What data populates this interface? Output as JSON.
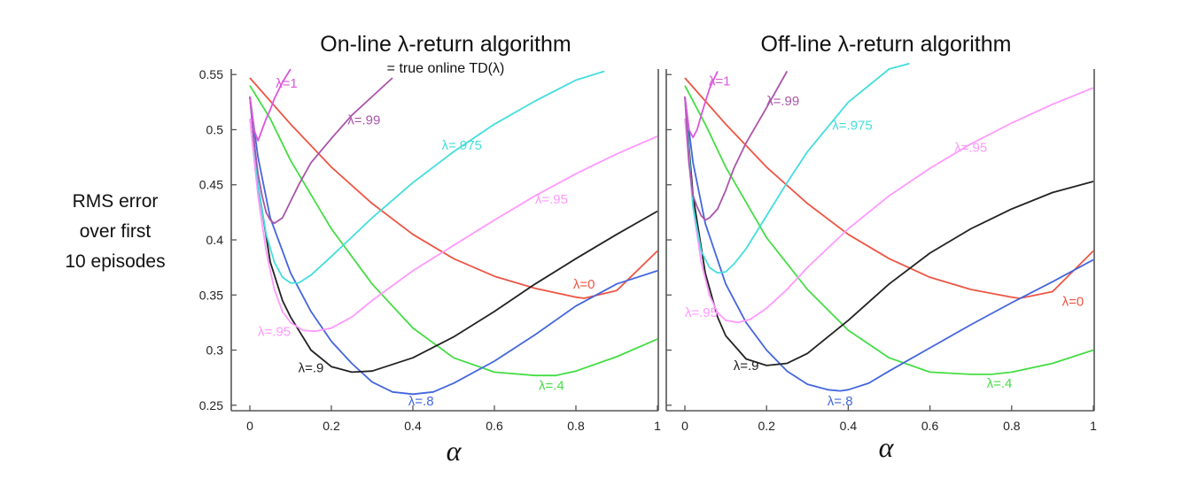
{
  "ylabel_lines": [
    "RMS error",
    "over first",
    "10 episodes"
  ],
  "chart_data": [
    {
      "type": "line",
      "title": "On-line λ-return algorithm",
      "subtitle": "= true online TD(λ)",
      "xlabel": "α",
      "xlim": [
        0,
        1
      ],
      "ylim": [
        0.245,
        0.555
      ],
      "xticks": [
        "0",
        "0.2",
        "0.4",
        "0.6",
        "0.8",
        "1"
      ],
      "yticks": [
        "0.25",
        "0.3",
        "0.35",
        "0.4",
        "0.45",
        "0.5",
        "0.55"
      ],
      "series": [
        {
          "name": "λ=0",
          "color": "#ee5544",
          "x": [
            0,
            0.1,
            0.2,
            0.3,
            0.4,
            0.5,
            0.6,
            0.7,
            0.8,
            0.82,
            0.9,
            1.0
          ],
          "y": [
            0.547,
            0.505,
            0.466,
            0.433,
            0.405,
            0.383,
            0.367,
            0.356,
            0.348,
            0.347,
            0.354,
            0.39
          ]
        },
        {
          "name": "λ=.4",
          "color": "#44dd44",
          "x": [
            0,
            0.05,
            0.1,
            0.2,
            0.3,
            0.4,
            0.5,
            0.6,
            0.7,
            0.75,
            0.8,
            0.9,
            1.0
          ],
          "y": [
            0.54,
            0.51,
            0.472,
            0.41,
            0.36,
            0.32,
            0.293,
            0.28,
            0.277,
            0.277,
            0.281,
            0.294,
            0.31
          ]
        },
        {
          "name": "λ=.8",
          "color": "#4466dd",
          "x": [
            0,
            0.02,
            0.05,
            0.1,
            0.15,
            0.2,
            0.25,
            0.3,
            0.35,
            0.4,
            0.45,
            0.5,
            0.6,
            0.7,
            0.8,
            0.9,
            1.0
          ],
          "y": [
            0.53,
            0.475,
            0.42,
            0.37,
            0.335,
            0.308,
            0.288,
            0.271,
            0.262,
            0.26,
            0.262,
            0.27,
            0.29,
            0.314,
            0.34,
            0.36,
            0.372
          ]
        },
        {
          "name": "λ=.9",
          "color": "#222222",
          "x": [
            0,
            0.02,
            0.05,
            0.08,
            0.1,
            0.15,
            0.2,
            0.25,
            0.3,
            0.4,
            0.5,
            0.6,
            0.7,
            0.8,
            0.9,
            1.0
          ],
          "y": [
            0.53,
            0.45,
            0.38,
            0.345,
            0.33,
            0.3,
            0.285,
            0.28,
            0.281,
            0.293,
            0.312,
            0.335,
            0.36,
            0.383,
            0.405,
            0.426
          ]
        },
        {
          "name": "λ=.95",
          "color": "#ff99ff",
          "x": [
            0,
            0.02,
            0.04,
            0.06,
            0.08,
            0.1,
            0.13,
            0.16,
            0.2,
            0.25,
            0.3,
            0.4,
            0.5,
            0.6,
            0.7,
            0.8,
            0.9,
            1.0
          ],
          "y": [
            0.51,
            0.44,
            0.39,
            0.355,
            0.335,
            0.325,
            0.318,
            0.317,
            0.32,
            0.33,
            0.345,
            0.372,
            0.395,
            0.418,
            0.44,
            0.46,
            0.478,
            0.494
          ]
        },
        {
          "name": "λ=.975",
          "color": "#44dddd",
          "x": [
            0,
            0.02,
            0.04,
            0.06,
            0.08,
            0.1,
            0.12,
            0.15,
            0.2,
            0.3,
            0.4,
            0.5,
            0.6,
            0.7,
            0.8,
            0.87
          ],
          "y": [
            0.53,
            0.45,
            0.405,
            0.38,
            0.366,
            0.361,
            0.361,
            0.368,
            0.385,
            0.42,
            0.452,
            0.48,
            0.505,
            0.526,
            0.545,
            0.553
          ]
        },
        {
          "name": "λ=.99",
          "color": "#aa55aa",
          "x": [
            0,
            0.01,
            0.02,
            0.03,
            0.04,
            0.05,
            0.06,
            0.08,
            0.1,
            0.12,
            0.15,
            0.2,
            0.25,
            0.3,
            0.35
          ],
          "y": [
            0.53,
            0.49,
            0.46,
            0.44,
            0.425,
            0.418,
            0.415,
            0.42,
            0.435,
            0.45,
            0.47,
            0.492,
            0.513,
            0.53,
            0.547
          ]
        },
        {
          "name": "λ=1",
          "color": "#dd55dd",
          "x": [
            0,
            0.01,
            0.02,
            0.03,
            0.04,
            0.05,
            0.06,
            0.08,
            0.1
          ],
          "y": [
            0.53,
            0.5,
            0.49,
            0.5,
            0.51,
            0.518,
            0.528,
            0.543,
            0.555
          ]
        }
      ],
      "labels": [
        {
          "text": "λ=1",
          "color": "#dd55dd",
          "x": 0.09,
          "y": 0.538
        },
        {
          "text": "λ=.99",
          "color": "#aa55aa",
          "x": 0.28,
          "y": 0.505
        },
        {
          "text": "λ=.975",
          "color": "#44dddd",
          "x": 0.52,
          "y": 0.482
        },
        {
          "text": "λ=.95",
          "color": "#ff99ff",
          "x": 0.74,
          "y": 0.433
        },
        {
          "text": "λ=0",
          "color": "#ee5544",
          "x": 0.82,
          "y": 0.356
        },
        {
          "text": "λ=.95",
          "color": "#ff99ff",
          "x": 0.06,
          "y": 0.313
        },
        {
          "text": "λ=.9",
          "color": "#222222",
          "x": 0.15,
          "y": 0.28
        },
        {
          "text": "λ=.8",
          "color": "#4466dd",
          "x": 0.42,
          "y": 0.25
        },
        {
          "text": "λ=.4",
          "color": "#44dd44",
          "x": 0.74,
          "y": 0.264
        }
      ]
    },
    {
      "type": "line",
      "title": "Off-line λ-return algorithm",
      "subtitle": "",
      "xlabel": "α",
      "xlim": [
        0,
        1
      ],
      "ylim": [
        0.245,
        0.555
      ],
      "xticks": [
        "0",
        "0.2",
        "0.4",
        "0.6",
        "0.8",
        "1"
      ],
      "yticks": [],
      "series": [
        {
          "name": "λ=0",
          "color": "#ee5544",
          "x": [
            0,
            0.1,
            0.2,
            0.3,
            0.4,
            0.5,
            0.6,
            0.7,
            0.8,
            0.82,
            0.9,
            1.0
          ],
          "y": [
            0.547,
            0.505,
            0.466,
            0.433,
            0.405,
            0.383,
            0.366,
            0.355,
            0.348,
            0.347,
            0.353,
            0.39
          ]
        },
        {
          "name": "λ=.4",
          "color": "#44dd44",
          "x": [
            0,
            0.05,
            0.1,
            0.2,
            0.3,
            0.4,
            0.5,
            0.6,
            0.7,
            0.75,
            0.8,
            0.9,
            1.0
          ],
          "y": [
            0.54,
            0.505,
            0.466,
            0.402,
            0.355,
            0.318,
            0.293,
            0.28,
            0.278,
            0.278,
            0.28,
            0.288,
            0.3
          ]
        },
        {
          "name": "λ=.8",
          "color": "#4466dd",
          "x": [
            0,
            0.02,
            0.05,
            0.1,
            0.15,
            0.2,
            0.25,
            0.3,
            0.35,
            0.38,
            0.4,
            0.45,
            0.5,
            0.6,
            0.7,
            0.8,
            0.9,
            1.0
          ],
          "y": [
            0.53,
            0.47,
            0.415,
            0.36,
            0.325,
            0.3,
            0.281,
            0.269,
            0.264,
            0.263,
            0.264,
            0.27,
            0.281,
            0.302,
            0.323,
            0.343,
            0.362,
            0.382
          ]
        },
        {
          "name": "λ=.9",
          "color": "#222222",
          "x": [
            0,
            0.02,
            0.05,
            0.08,
            0.1,
            0.15,
            0.2,
            0.25,
            0.3,
            0.4,
            0.5,
            0.6,
            0.7,
            0.8,
            0.9,
            1.0
          ],
          "y": [
            0.53,
            0.44,
            0.37,
            0.33,
            0.313,
            0.292,
            0.286,
            0.288,
            0.297,
            0.327,
            0.36,
            0.388,
            0.41,
            0.428,
            0.443,
            0.453
          ]
        },
        {
          "name": "λ=.95",
          "color": "#ff99ff",
          "x": [
            0,
            0.02,
            0.04,
            0.06,
            0.08,
            0.1,
            0.13,
            0.16,
            0.2,
            0.25,
            0.3,
            0.4,
            0.5,
            0.6,
            0.7,
            0.8,
            0.9,
            1.0
          ],
          "y": [
            0.51,
            0.43,
            0.38,
            0.35,
            0.334,
            0.327,
            0.325,
            0.328,
            0.338,
            0.355,
            0.375,
            0.41,
            0.44,
            0.465,
            0.487,
            0.506,
            0.523,
            0.538
          ]
        },
        {
          "name": "λ=.975",
          "color": "#44dddd",
          "x": [
            0,
            0.02,
            0.04,
            0.06,
            0.08,
            0.1,
            0.12,
            0.15,
            0.2,
            0.25,
            0.3,
            0.4,
            0.5,
            0.55
          ],
          "y": [
            0.53,
            0.43,
            0.39,
            0.375,
            0.37,
            0.371,
            0.378,
            0.392,
            0.422,
            0.452,
            0.48,
            0.525,
            0.555,
            0.56
          ]
        },
        {
          "name": "λ=.99",
          "color": "#aa55aa",
          "x": [
            0,
            0.01,
            0.02,
            0.03,
            0.04,
            0.05,
            0.06,
            0.08,
            0.1,
            0.12,
            0.15,
            0.2,
            0.25
          ],
          "y": [
            0.53,
            0.47,
            0.44,
            0.43,
            0.422,
            0.418,
            0.42,
            0.428,
            0.445,
            0.465,
            0.488,
            0.52,
            0.553
          ]
        },
        {
          "name": "λ=1",
          "color": "#dd55dd",
          "x": [
            0,
            0.01,
            0.02,
            0.03,
            0.04,
            0.05,
            0.06,
            0.08
          ],
          "y": [
            0.53,
            0.5,
            0.493,
            0.5,
            0.513,
            0.525,
            0.537,
            0.553
          ]
        }
      ],
      "labels": [
        {
          "text": "λ=1",
          "color": "#dd55dd",
          "x": 0.085,
          "y": 0.54
        },
        {
          "text": "λ=.99",
          "color": "#aa55aa",
          "x": 0.24,
          "y": 0.522
        },
        {
          "text": "λ=.975",
          "color": "#44dddd",
          "x": 0.41,
          "y": 0.5
        },
        {
          "text": "λ=.95",
          "color": "#ff99ff",
          "x": 0.7,
          "y": 0.48
        },
        {
          "text": "λ=0",
          "color": "#ee5544",
          "x": 0.95,
          "y": 0.34
        },
        {
          "text": "λ=.95",
          "color": "#ff99ff",
          "x": 0.04,
          "y": 0.33
        },
        {
          "text": "λ=.9",
          "color": "#222222",
          "x": 0.15,
          "y": 0.282
        },
        {
          "text": "λ=.8",
          "color": "#4466dd",
          "x": 0.38,
          "y": 0.25
        },
        {
          "text": "λ=.4",
          "color": "#44dd44",
          "x": 0.77,
          "y": 0.266
        }
      ]
    }
  ]
}
